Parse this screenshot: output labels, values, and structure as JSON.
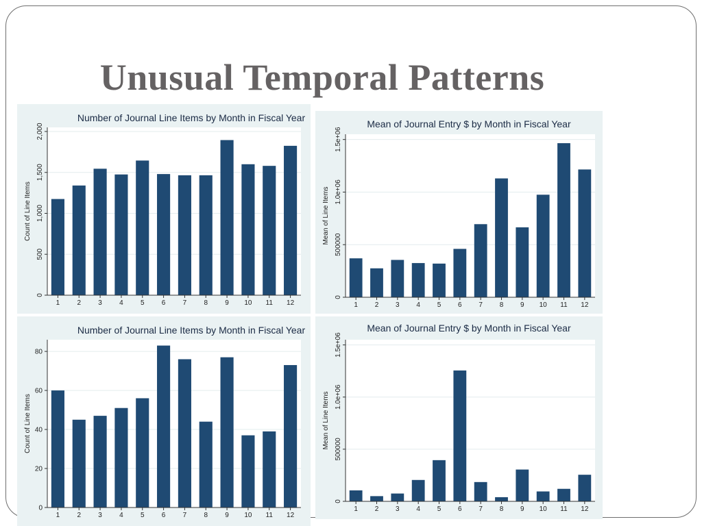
{
  "slide": {
    "title": "Unusual Temporal Patterns"
  },
  "colors": {
    "bar": "#1f4a73",
    "panel_bg": "#eaf2f3",
    "plot_bg": "#ffffff",
    "title_text": "#656263"
  },
  "chart_data": [
    {
      "id": "top-left",
      "type": "bar",
      "title": "Number of Journal Line Items by Month in Fiscal Year",
      "xlabel": "",
      "ylabel": "Count of Line Items",
      "categories": [
        "1",
        "2",
        "3",
        "4",
        "5",
        "6",
        "7",
        "8",
        "9",
        "10",
        "11",
        "12"
      ],
      "values": [
        1175,
        1340,
        1545,
        1475,
        1645,
        1480,
        1465,
        1465,
        1895,
        1600,
        1580,
        1825
      ],
      "ylim": [
        0,
        2050
      ],
      "yticks": [
        0,
        500,
        1000,
        1500,
        2000
      ],
      "ytick_labels": [
        "0",
        "500",
        "1,000",
        "1,500",
        "2,000"
      ],
      "grid": true
    },
    {
      "id": "top-right",
      "type": "bar",
      "title": "Mean of Journal Entry $ by Month in Fiscal Year",
      "xlabel": "",
      "ylabel": "Mean of Line Items",
      "categories": [
        "1",
        "2",
        "3",
        "4",
        "5",
        "6",
        "7",
        "8",
        "9",
        "10",
        "11",
        "12"
      ],
      "values": [
        370000,
        275000,
        355000,
        325000,
        320000,
        460000,
        695000,
        1130000,
        665000,
        975000,
        1465000,
        1215000
      ],
      "ylim": [
        0,
        1550000
      ],
      "yticks": [
        0,
        500000,
        1000000,
        1500000
      ],
      "ytick_labels": [
        "0",
        "500000",
        "1.0e+06",
        "1.5e+06"
      ],
      "grid": true
    },
    {
      "id": "bottom-left",
      "type": "bar",
      "title": "Number of Journal Line Items by Month in Fiscal Year",
      "xlabel": "",
      "ylabel": "Count of Line Items",
      "categories": [
        "1",
        "2",
        "3",
        "4",
        "5",
        "6",
        "7",
        "8",
        "9",
        "10",
        "11",
        "12"
      ],
      "values": [
        60,
        45,
        47,
        51,
        56,
        83,
        76,
        44,
        77,
        37,
        39,
        73
      ],
      "ylim": [
        0,
        86
      ],
      "yticks": [
        0,
        20,
        40,
        60,
        80
      ],
      "ytick_labels": [
        "0",
        "20",
        "40",
        "60",
        "80"
      ],
      "grid": true
    },
    {
      "id": "bottom-right",
      "type": "bar",
      "title": "Mean of Journal Entry $ by Month in Fiscal Year",
      "xlabel": "",
      "ylabel": "Mean of Line Items",
      "categories": [
        "1",
        "2",
        "3",
        "4",
        "5",
        "6",
        "7",
        "8",
        "9",
        "10",
        "11",
        "12"
      ],
      "values": [
        105000,
        50000,
        75000,
        205000,
        395000,
        1255000,
        185000,
        40000,
        305000,
        95000,
        120000,
        255000
      ],
      "ylim": [
        0,
        1550000
      ],
      "yticks": [
        0,
        500000,
        1000000,
        1500000
      ],
      "ytick_labels": [
        "0",
        "500000",
        "1.0e+06",
        "1.5e+06"
      ],
      "grid": true
    }
  ]
}
